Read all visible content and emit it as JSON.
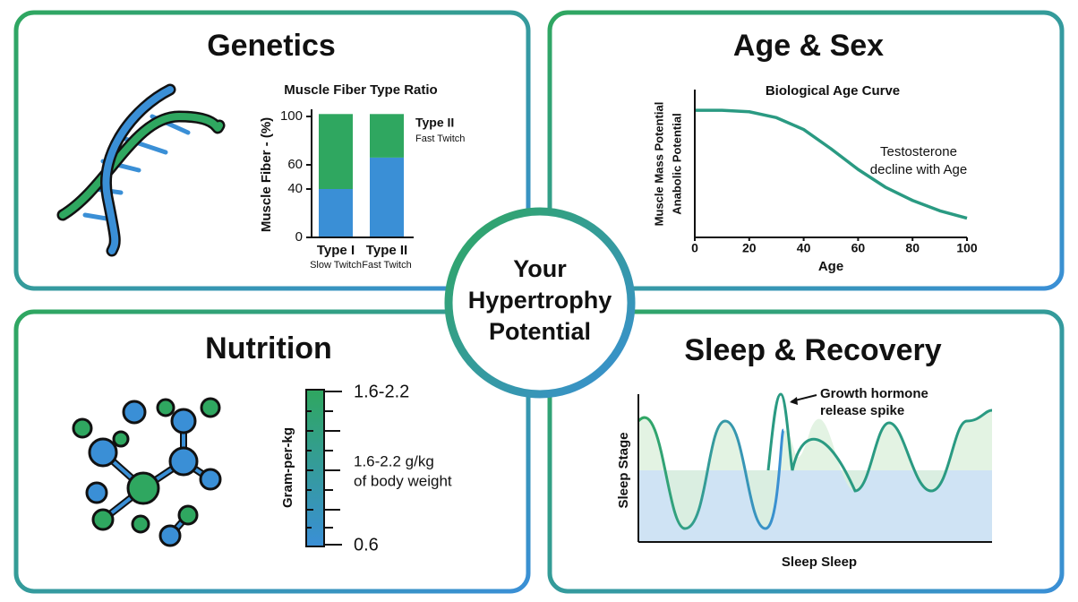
{
  "center": {
    "lines": [
      "Your",
      "Hypertrophy",
      "Potential"
    ]
  },
  "panels": {
    "genetics": "Genetics",
    "age_sex": "Age & Sex",
    "nutrition": "Nutrition",
    "sleep": "Sleep & Recovery"
  },
  "chart_data": [
    {
      "type": "bar",
      "stacked": true,
      "title": "Muscle Fiber Type Ratio",
      "y_label": "Muscle Fiber - (%)",
      "categories": [
        "Type I",
        "Type II"
      ],
      "category_sublabels": [
        "Slow Twitch",
        "Fast Twitch"
      ],
      "series": [
        {
          "color": "#3a8fd6",
          "values": [
            40,
            66
          ]
        },
        {
          "name": "Type II",
          "subname": "Fast Twitch",
          "color": "#2fa760",
          "values": [
            62,
            36
          ]
        }
      ],
      "ylim": [
        0,
        100
      ],
      "yticks": [
        0,
        40,
        60,
        100
      ]
    },
    {
      "type": "line",
      "title": "Biological Age Curve",
      "x_label": "Age",
      "y_labels": [
        "Muscle Mass Potential",
        "Anabolic Potential"
      ],
      "annotation": [
        "Testosterone",
        "decline with Age"
      ],
      "x": [
        0,
        10,
        20,
        30,
        40,
        50,
        60,
        70,
        80,
        90,
        100
      ],
      "series": [
        {
          "color": "#2a9a82",
          "values": [
            86,
            86,
            85,
            81,
            73,
            60,
            46,
            34,
            25,
            18,
            13
          ]
        }
      ],
      "xlim": [
        0,
        100
      ],
      "xticks": [
        0,
        20,
        40,
        60,
        80,
        100
      ],
      "ylim": [
        0,
        100
      ]
    }
  ],
  "nutrition": {
    "y_label": "Gram-per-kg",
    "top_label": "1.6-2.2",
    "middle_label": [
      "1.6-2.2 g/kg",
      "of body weight"
    ],
    "bottom_label": "0.6"
  },
  "sleep": {
    "y_label": "Sleep Stage",
    "x_label": "Sleep Sleep",
    "annotation": [
      "Growth hormone",
      "release spike"
    ]
  }
}
